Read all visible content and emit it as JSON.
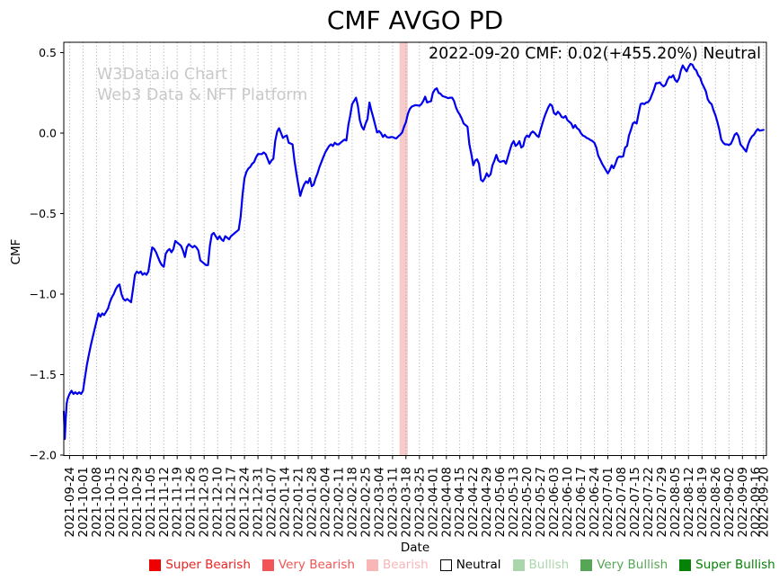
{
  "title": "CMF AVGO PD",
  "annotation": "2022-09-20 CMF: 0.02(+455.20%) Neutral",
  "watermark": {
    "line1": "W3Data.io Chart",
    "line2": "Web3 Data & NFT Platform"
  },
  "axes": {
    "x_label": "Date",
    "y_label": "CMF"
  },
  "legend": {
    "items": [
      {
        "label": "Super Bearish",
        "swatch": "#ee0000",
        "swatch_border": "#ee0000",
        "text_color": "#ee2222"
      },
      {
        "label": "Very Bearish",
        "swatch": "#f25555",
        "swatch_border": "#f25555",
        "text_color": "#f25555"
      },
      {
        "label": "Bearish",
        "swatch": "#f9b6b6",
        "swatch_border": "#f9b6b6",
        "text_color": "#f9b6b6"
      },
      {
        "label": "Neutral",
        "swatch": "#ffffff",
        "swatch_border": "#000000",
        "text_color": "#000000"
      },
      {
        "label": "Bullish",
        "swatch": "#abd5ab",
        "swatch_border": "#abd5ab",
        "text_color": "#abd5ab"
      },
      {
        "label": "Very Bullish",
        "swatch": "#57a557",
        "swatch_border": "#57a557",
        "text_color": "#57a557"
      },
      {
        "label": "Super Bullish",
        "swatch": "#068206",
        "swatch_border": "#068206",
        "text_color": "#068206"
      }
    ]
  },
  "chart_data": {
    "type": "line",
    "title": "CMF AVGO PD",
    "xlabel": "Date",
    "ylabel": "CMF",
    "series_name": "CMF",
    "line_color": "#0000ee",
    "grid": "vertical-dotted",
    "grid_color": "#999999",
    "x_unit": "days since 2021-09-24",
    "xlim_days": [
      -3,
      362.5
    ],
    "ylim": [
      -2.0,
      0.56
    ],
    "y_ticks": [
      "0.5",
      "0.0",
      "−0.5",
      "−1.0",
      "−1.5",
      "−2.0"
    ],
    "y_tick_values": [
      0.5,
      0.0,
      -0.5,
      -1.0,
      -1.5,
      -2.0
    ],
    "tick_days": [
      0,
      7,
      14,
      21,
      28,
      35,
      42,
      49,
      56,
      63,
      70,
      77,
      84,
      91,
      98,
      105,
      112,
      119,
      126,
      133,
      140,
      147,
      154,
      161,
      168,
      175,
      182,
      189,
      196,
      203,
      210,
      217,
      224,
      231,
      238,
      245,
      252,
      259,
      266,
      273,
      280,
      287,
      294,
      301,
      308,
      315,
      322,
      329,
      336,
      343,
      350,
      357,
      361
    ],
    "tick_labels": [
      "2021-09-24",
      "2021-10-01",
      "2021-10-08",
      "2021-10-15",
      "2021-10-22",
      "2021-10-29",
      "2021-11-05",
      "2021-11-12",
      "2021-11-19",
      "2021-11-26",
      "2021-12-03",
      "2021-12-10",
      "2021-12-17",
      "2021-12-24",
      "2021-12-31",
      "2022-01-07",
      "2022-01-14",
      "2022-01-21",
      "2022-01-28",
      "2022-02-04",
      "2022-02-11",
      "2022-02-18",
      "2022-02-25",
      "2022-03-04",
      "2022-03-11",
      "2022-03-18",
      "2022-03-25",
      "2022-04-01",
      "2022-04-08",
      "2022-04-15",
      "2022-04-22",
      "2022-04-29",
      "2022-05-06",
      "2022-05-13",
      "2022-05-20",
      "2022-05-27",
      "2022-06-03",
      "2022-06-10",
      "2022-06-17",
      "2022-06-24",
      "2022-07-01",
      "2022-07-08",
      "2022-07-15",
      "2022-07-22",
      "2022-07-29",
      "2022-08-05",
      "2022-08-12",
      "2022-08-19",
      "2022-08-26",
      "2022-09-02",
      "2022-09-09",
      "2022-09-16",
      "2022-09-20"
    ],
    "highlight_band": {
      "from_day": 171.6,
      "to_day": 175.9,
      "color": "#f8cbcb",
      "at_label": "2022-03-18"
    },
    "last_point": {
      "date": "2022-09-20",
      "value": 0.02,
      "change_pct": "+455.20%",
      "signal": "Neutral"
    },
    "points": [
      [
        -3,
        -1.73
      ],
      [
        -2.5,
        -1.9
      ],
      [
        -2,
        -1.78
      ],
      [
        -1.5,
        -1.68
      ],
      [
        -1,
        -1.65
      ],
      [
        0,
        -1.62
      ],
      [
        1,
        -1.6
      ],
      [
        2,
        -1.62
      ],
      [
        3,
        -1.61
      ],
      [
        4,
        -1.62
      ],
      [
        5,
        -1.61
      ],
      [
        6,
        -1.62
      ],
      [
        7,
        -1.6
      ],
      [
        8,
        -1.52
      ],
      [
        9,
        -1.44
      ],
      [
        10,
        -1.38
      ],
      [
        11,
        -1.32
      ],
      [
        12,
        -1.27
      ],
      [
        13,
        -1.22
      ],
      [
        14,
        -1.17
      ],
      [
        15,
        -1.12
      ],
      [
        16,
        -1.14
      ],
      [
        17,
        -1.12
      ],
      [
        18,
        -1.13
      ],
      [
        19,
        -1.11
      ],
      [
        20,
        -1.09
      ],
      [
        21,
        -1.05
      ],
      [
        22,
        -1.02
      ],
      [
        23,
        -1.0
      ],
      [
        24,
        -0.97
      ],
      [
        25,
        -0.95
      ],
      [
        26,
        -0.94
      ],
      [
        27,
        -1.0
      ],
      [
        28,
        -1.03
      ],
      [
        29,
        -1.04
      ],
      [
        30,
        -1.03
      ],
      [
        31,
        -1.04
      ],
      [
        32,
        -1.05
      ],
      [
        33,
        -0.97
      ],
      [
        34,
        -0.88
      ],
      [
        35,
        -0.86
      ],
      [
        36,
        -0.87
      ],
      [
        37,
        -0.86
      ],
      [
        38,
        -0.88
      ],
      [
        39,
        -0.87
      ],
      [
        40,
        -0.88
      ],
      [
        41,
        -0.86
      ],
      [
        42,
        -0.78
      ],
      [
        43,
        -0.71
      ],
      [
        44,
        -0.72
      ],
      [
        45,
        -0.74
      ],
      [
        46,
        -0.77
      ],
      [
        47,
        -0.8
      ],
      [
        48,
        -0.82
      ],
      [
        49,
        -0.83
      ],
      [
        50,
        -0.75
      ],
      [
        51,
        -0.73
      ],
      [
        52,
        -0.72
      ],
      [
        53,
        -0.74
      ],
      [
        54,
        -0.72
      ],
      [
        55,
        -0.67
      ],
      [
        56,
        -0.68
      ],
      [
        57,
        -0.69
      ],
      [
        58,
        -0.7
      ],
      [
        59,
        -0.73
      ],
      [
        60,
        -0.77
      ],
      [
        61,
        -0.71
      ],
      [
        62,
        -0.69
      ],
      [
        63,
        -0.7
      ],
      [
        64,
        -0.71
      ],
      [
        65,
        -0.7
      ],
      [
        66,
        -0.71
      ],
      [
        67,
        -0.73
      ],
      [
        68,
        -0.79
      ],
      [
        69,
        -0.8
      ],
      [
        70,
        -0.81
      ],
      [
        71,
        -0.82
      ],
      [
        72,
        -0.82
      ],
      [
        73,
        -0.7
      ],
      [
        74,
        -0.63
      ],
      [
        75,
        -0.62
      ],
      [
        76,
        -0.64
      ],
      [
        77,
        -0.66
      ],
      [
        78,
        -0.64
      ],
      [
        79,
        -0.66
      ],
      [
        80,
        -0.67
      ],
      [
        81,
        -0.64
      ],
      [
        82,
        -0.65
      ],
      [
        83,
        -0.66
      ],
      [
        84,
        -0.64
      ],
      [
        85,
        -0.63
      ],
      [
        86,
        -0.62
      ],
      [
        87,
        -0.61
      ],
      [
        88,
        -0.6
      ],
      [
        89,
        -0.52
      ],
      [
        90,
        -0.38
      ],
      [
        91,
        -0.28
      ],
      [
        92,
        -0.24
      ],
      [
        93,
        -0.22
      ],
      [
        94,
        -0.21
      ],
      [
        95,
        -0.19
      ],
      [
        96,
        -0.18
      ],
      [
        97,
        -0.15
      ],
      [
        98,
        -0.13
      ],
      [
        99,
        -0.13
      ],
      [
        100,
        -0.13
      ],
      [
        101,
        -0.12
      ],
      [
        102,
        -0.13
      ],
      [
        103,
        -0.16
      ],
      [
        104,
        -0.19
      ],
      [
        105,
        -0.17
      ],
      [
        106,
        -0.16
      ],
      [
        107,
        -0.05
      ],
      [
        108,
        0.01
      ],
      [
        109,
        0.03
      ],
      [
        110,
        0.0
      ],
      [
        111,
        -0.03
      ],
      [
        112,
        -0.02
      ],
      [
        113,
        -0.015
      ],
      [
        114,
        -0.06
      ],
      [
        115,
        -0.065
      ],
      [
        116,
        -0.07
      ],
      [
        117,
        -0.17
      ],
      [
        118,
        -0.25
      ],
      [
        119,
        -0.32
      ],
      [
        120,
        -0.39
      ],
      [
        121,
        -0.35
      ],
      [
        122,
        -0.32
      ],
      [
        123,
        -0.3
      ],
      [
        124,
        -0.31
      ],
      [
        125,
        -0.28
      ],
      [
        126,
        -0.33
      ],
      [
        127,
        -0.32
      ],
      [
        128,
        -0.28
      ],
      [
        129,
        -0.25
      ],
      [
        130,
        -0.21
      ],
      [
        131,
        -0.18
      ],
      [
        132,
        -0.15
      ],
      [
        133,
        -0.12
      ],
      [
        134,
        -0.1
      ],
      [
        135,
        -0.08
      ],
      [
        136,
        -0.07
      ],
      [
        137,
        -0.08
      ],
      [
        138,
        -0.06
      ],
      [
        139,
        -0.07
      ],
      [
        140,
        -0.07
      ],
      [
        141,
        -0.06
      ],
      [
        142,
        -0.05
      ],
      [
        143,
        -0.04
      ],
      [
        144,
        -0.046
      ],
      [
        145,
        0.05
      ],
      [
        146,
        0.11
      ],
      [
        147,
        0.18
      ],
      [
        148,
        0.2
      ],
      [
        149,
        0.22
      ],
      [
        150,
        0.17
      ],
      [
        151,
        0.08
      ],
      [
        152,
        0.04
      ],
      [
        153,
        0.022
      ],
      [
        154,
        0.06
      ],
      [
        155,
        0.087
      ],
      [
        156,
        0.19
      ],
      [
        157,
        0.14
      ],
      [
        158,
        0.096
      ],
      [
        159,
        0.05
      ],
      [
        160,
        0.004
      ],
      [
        161,
        0.013
      ],
      [
        162,
        0.0
      ],
      [
        163,
        -0.024
      ],
      [
        164,
        -0.01
      ],
      [
        165,
        -0.024
      ],
      [
        166,
        -0.028
      ],
      [
        167,
        -0.025
      ],
      [
        168,
        -0.024
      ],
      [
        169,
        -0.03
      ],
      [
        170,
        -0.033
      ],
      [
        171,
        -0.02
      ],
      [
        172,
        -0.01
      ],
      [
        173,
        0.004
      ],
      [
        174,
        0.04
      ],
      [
        175,
        0.068
      ],
      [
        176,
        0.12
      ],
      [
        177,
        0.15
      ],
      [
        178,
        0.165
      ],
      [
        179,
        0.17
      ],
      [
        180,
        0.174
      ],
      [
        181,
        0.172
      ],
      [
        182,
        0.17
      ],
      [
        183,
        0.18
      ],
      [
        184,
        0.2
      ],
      [
        185,
        0.226
      ],
      [
        186,
        0.19
      ],
      [
        187,
        0.195
      ],
      [
        188,
        0.198
      ],
      [
        189,
        0.25
      ],
      [
        190,
        0.27
      ],
      [
        191,
        0.278
      ],
      [
        192,
        0.25
      ],
      [
        193,
        0.244
      ],
      [
        194,
        0.23
      ],
      [
        195,
        0.226
      ],
      [
        196,
        0.222
      ],
      [
        197,
        0.217
      ],
      [
        198,
        0.22
      ],
      [
        199,
        0.22
      ],
      [
        200,
        0.2
      ],
      [
        201,
        0.16
      ],
      [
        202,
        0.133
      ],
      [
        203,
        0.115
      ],
      [
        204,
        0.09
      ],
      [
        205,
        0.06
      ],
      [
        206,
        0.05
      ],
      [
        207,
        0.04
      ],
      [
        208,
        -0.07
      ],
      [
        209,
        -0.13
      ],
      [
        210,
        -0.2
      ],
      [
        211,
        -0.17
      ],
      [
        212,
        -0.163
      ],
      [
        213,
        -0.19
      ],
      [
        214,
        -0.29
      ],
      [
        215,
        -0.3
      ],
      [
        216,
        -0.28
      ],
      [
        217,
        -0.25
      ],
      [
        218,
        -0.27
      ],
      [
        219,
        -0.256
      ],
      [
        220,
        -0.2
      ],
      [
        221,
        -0.17
      ],
      [
        222,
        -0.135
      ],
      [
        223,
        -0.17
      ],
      [
        224,
        -0.18
      ],
      [
        225,
        -0.175
      ],
      [
        226,
        -0.172
      ],
      [
        227,
        -0.19
      ],
      [
        228,
        -0.15
      ],
      [
        229,
        -0.107
      ],
      [
        230,
        -0.07
      ],
      [
        231,
        -0.05
      ],
      [
        232,
        -0.08
      ],
      [
        233,
        -0.07
      ],
      [
        234,
        -0.05
      ],
      [
        235,
        -0.09
      ],
      [
        236,
        -0.08
      ],
      [
        237,
        -0.03
      ],
      [
        238,
        -0.015
      ],
      [
        239,
        -0.024
      ],
      [
        240,
        0.0
      ],
      [
        241,
        0.01
      ],
      [
        242,
        0.0
      ],
      [
        243,
        -0.015
      ],
      [
        244,
        -0.024
      ],
      [
        245,
        0.02
      ],
      [
        246,
        0.06
      ],
      [
        247,
        0.1
      ],
      [
        248,
        0.13
      ],
      [
        249,
        0.16
      ],
      [
        250,
        0.18
      ],
      [
        251,
        0.17
      ],
      [
        252,
        0.124
      ],
      [
        253,
        0.115
      ],
      [
        254,
        0.133
      ],
      [
        255,
        0.12
      ],
      [
        256,
        0.1
      ],
      [
        257,
        0.096
      ],
      [
        258,
        0.106
      ],
      [
        259,
        0.08
      ],
      [
        260,
        0.07
      ],
      [
        261,
        0.06
      ],
      [
        262,
        0.032
      ],
      [
        263,
        0.05
      ],
      [
        264,
        0.03
      ],
      [
        265,
        0.022
      ],
      [
        266,
        0.0
      ],
      [
        267,
        -0.015
      ],
      [
        268,
        -0.02
      ],
      [
        269,
        -0.03
      ],
      [
        270,
        -0.035
      ],
      [
        271,
        -0.043
      ],
      [
        272,
        -0.05
      ],
      [
        273,
        -0.06
      ],
      [
        274,
        -0.09
      ],
      [
        275,
        -0.14
      ],
      [
        276,
        -0.163
      ],
      [
        277,
        -0.19
      ],
      [
        278,
        -0.21
      ],
      [
        279,
        -0.23
      ],
      [
        280,
        -0.25
      ],
      [
        281,
        -0.23
      ],
      [
        282,
        -0.2
      ],
      [
        283,
        -0.218
      ],
      [
        284,
        -0.19
      ],
      [
        285,
        -0.155
      ],
      [
        286,
        -0.145
      ],
      [
        287,
        -0.148
      ],
      [
        288,
        -0.144
      ],
      [
        289,
        -0.09
      ],
      [
        290,
        -0.08
      ],
      [
        291,
        -0.015
      ],
      [
        292,
        0.02
      ],
      [
        293,
        0.06
      ],
      [
        294,
        0.068
      ],
      [
        295,
        0.06
      ],
      [
        296,
        0.12
      ],
      [
        297,
        0.18
      ],
      [
        298,
        0.185
      ],
      [
        299,
        0.18
      ],
      [
        300,
        0.19
      ],
      [
        301,
        0.193
      ],
      [
        302,
        0.21
      ],
      [
        303,
        0.24
      ],
      [
        304,
        0.27
      ],
      [
        305,
        0.31
      ],
      [
        306,
        0.31
      ],
      [
        307,
        0.315
      ],
      [
        308,
        0.3
      ],
      [
        309,
        0.29
      ],
      [
        310,
        0.3
      ],
      [
        311,
        0.33
      ],
      [
        312,
        0.35
      ],
      [
        313,
        0.346
      ],
      [
        314,
        0.36
      ],
      [
        315,
        0.33
      ],
      [
        316,
        0.318
      ],
      [
        317,
        0.34
      ],
      [
        318,
        0.39
      ],
      [
        319,
        0.42
      ],
      [
        320,
        0.4
      ],
      [
        321,
        0.383
      ],
      [
        322,
        0.41
      ],
      [
        323,
        0.43
      ],
      [
        324,
        0.425
      ],
      [
        325,
        0.4
      ],
      [
        326,
        0.39
      ],
      [
        327,
        0.36
      ],
      [
        328,
        0.346
      ],
      [
        329,
        0.31
      ],
      [
        330,
        0.285
      ],
      [
        331,
        0.26
      ],
      [
        332,
        0.21
      ],
      [
        333,
        0.19
      ],
      [
        334,
        0.18
      ],
      [
        335,
        0.14
      ],
      [
        336,
        0.11
      ],
      [
        337,
        0.07
      ],
      [
        338,
        0.02
      ],
      [
        339,
        -0.04
      ],
      [
        340,
        -0.06
      ],
      [
        341,
        -0.07
      ],
      [
        342,
        -0.07
      ],
      [
        343,
        -0.074
      ],
      [
        344,
        -0.067
      ],
      [
        345,
        -0.04
      ],
      [
        346,
        -0.01
      ],
      [
        347,
        0.0
      ],
      [
        348,
        -0.02
      ],
      [
        349,
        -0.07
      ],
      [
        350,
        -0.085
      ],
      [
        351,
        -0.1
      ],
      [
        352,
        -0.115
      ],
      [
        353,
        -0.07
      ],
      [
        354,
        -0.04
      ],
      [
        355,
        -0.02
      ],
      [
        356,
        -0.01
      ],
      [
        357,
        0.01
      ],
      [
        358,
        0.025
      ],
      [
        359,
        0.015
      ],
      [
        361,
        0.02
      ]
    ]
  }
}
